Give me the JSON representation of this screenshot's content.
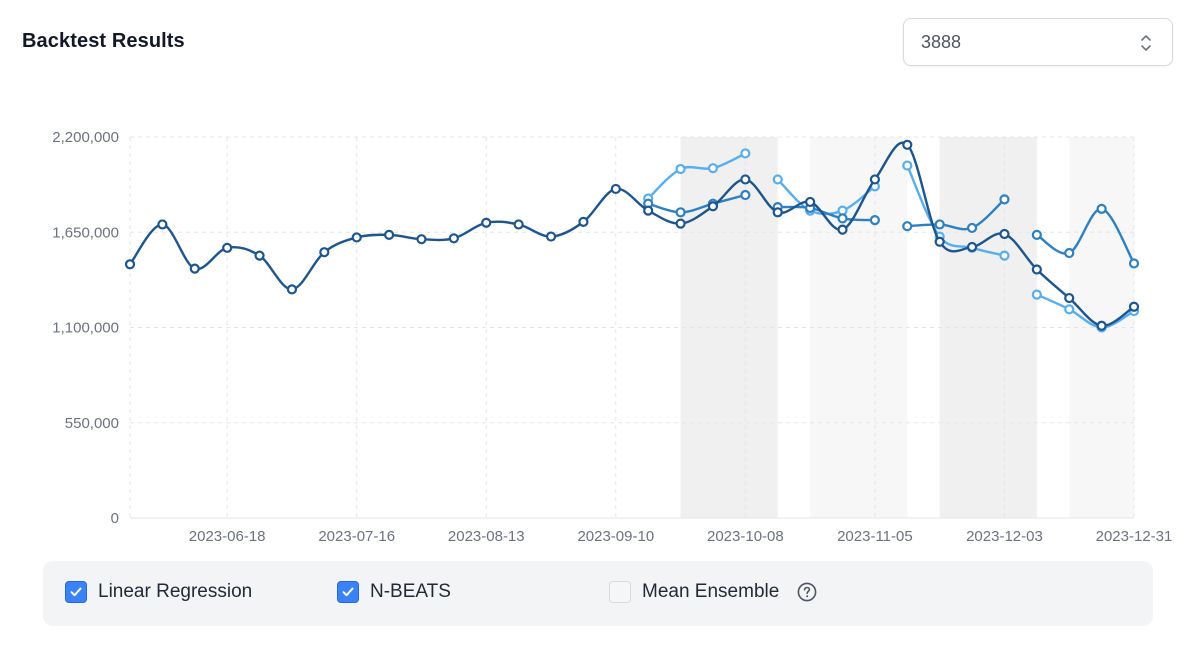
{
  "header": {
    "title": "Backtest Results"
  },
  "selector": {
    "value": "3888",
    "icon": "chevron-up-down-icon"
  },
  "legend": {
    "items": [
      {
        "label": "Linear Regression",
        "checked": true
      },
      {
        "label": "N-BEATS",
        "checked": true
      },
      {
        "label": "Mean Ensemble",
        "checked": false
      }
    ],
    "help_icon": "question-circle-icon"
  },
  "colors": {
    "actual": "#1c5590",
    "linear_regression": "#2d80c4",
    "nbeats": "#56aef0",
    "checkbox": "#3b82f6"
  },
  "chart_data": {
    "type": "line",
    "title": "",
    "xlabel": "",
    "ylabel": "",
    "ylim": [
      0,
      2200000
    ],
    "xlim": [
      "2023-05-28",
      "2023-12-31"
    ],
    "y_ticks": [
      0,
      550000,
      1100000,
      1650000,
      2200000
    ],
    "y_tick_labels": [
      "0",
      "550,000",
      "1,100,000",
      "1,650,000",
      "2,200,000"
    ],
    "x_ticks": [
      "2023-06-18",
      "2023-07-16",
      "2023-08-13",
      "2023-09-10",
      "2023-10-08",
      "2023-11-05",
      "2023-12-03",
      "2023-12-31"
    ],
    "grid": true,
    "shaded_periods": [
      {
        "start": "2023-09-24",
        "end": "2023-10-15"
      },
      {
        "start": "2023-10-22",
        "end": "2023-11-12"
      },
      {
        "start": "2023-11-19",
        "end": "2023-12-10"
      },
      {
        "start": "2023-12-17",
        "end": "2024-01-07"
      }
    ],
    "series": [
      {
        "name": "",
        "role": "actual",
        "points": [
          [
            "2023-05-28",
            1465000
          ],
          [
            "2023-06-04",
            1695000
          ],
          [
            "2023-06-11",
            1440000
          ],
          [
            "2023-06-18",
            1560000
          ],
          [
            "2023-06-25",
            1515000
          ],
          [
            "2023-07-02",
            1320000
          ],
          [
            "2023-07-09",
            1535000
          ],
          [
            "2023-07-16",
            1620000
          ],
          [
            "2023-07-23",
            1635000
          ],
          [
            "2023-07-30",
            1610000
          ],
          [
            "2023-08-06",
            1615000
          ],
          [
            "2023-08-13",
            1705000
          ],
          [
            "2023-08-20",
            1695000
          ],
          [
            "2023-08-27",
            1625000
          ],
          [
            "2023-09-03",
            1710000
          ],
          [
            "2023-09-10",
            1900000
          ],
          [
            "2023-09-17",
            1775000
          ],
          [
            "2023-09-24",
            1700000
          ],
          [
            "2023-10-01",
            1800000
          ],
          [
            "2023-10-08",
            1955000
          ],
          [
            "2023-10-15",
            1765000
          ],
          [
            "2023-10-22",
            1825000
          ],
          [
            "2023-10-29",
            1665000
          ],
          [
            "2023-11-05",
            1955000
          ],
          [
            "2023-11-12",
            2155000
          ],
          [
            "2023-11-19",
            1595000
          ],
          [
            "2023-11-26",
            1565000
          ],
          [
            "2023-12-03",
            1640000
          ],
          [
            "2023-12-10",
            1435000
          ],
          [
            "2023-12-17",
            1270000
          ],
          [
            "2023-12-24",
            1110000
          ],
          [
            "2023-12-31",
            1220000
          ]
        ]
      },
      {
        "name": "Linear Regression",
        "role": "linear_regression",
        "segments": [
          [
            [
              "2023-09-17",
              1815000
            ],
            [
              "2023-09-24",
              1765000
            ],
            [
              "2023-10-01",
              1815000
            ],
            [
              "2023-10-08",
              1865000
            ]
          ],
          [
            [
              "2023-10-15",
              1795000
            ],
            [
              "2023-10-22",
              1790000
            ],
            [
              "2023-10-29",
              1730000
            ],
            [
              "2023-11-05",
              1720000
            ]
          ],
          [
            [
              "2023-11-12",
              1685000
            ],
            [
              "2023-11-19",
              1695000
            ],
            [
              "2023-11-26",
              1675000
            ],
            [
              "2023-12-03",
              1840000
            ]
          ],
          [
            [
              "2023-12-10",
              1635000
            ],
            [
              "2023-12-17",
              1530000
            ],
            [
              "2023-12-24",
              1785000
            ],
            [
              "2023-12-31",
              1470000
            ]
          ]
        ]
      },
      {
        "name": "N-BEATS",
        "role": "nbeats",
        "segments": [
          [
            [
              "2023-09-17",
              1845000
            ],
            [
              "2023-09-24",
              2015000
            ],
            [
              "2023-10-01",
              2020000
            ],
            [
              "2023-10-08",
              2105000
            ]
          ],
          [
            [
              "2023-10-15",
              1955000
            ],
            [
              "2023-10-22",
              1775000
            ],
            [
              "2023-10-29",
              1775000
            ],
            [
              "2023-11-05",
              1915000
            ]
          ],
          [
            [
              "2023-11-12",
              2035000
            ],
            [
              "2023-11-19",
              1625000
            ],
            [
              "2023-11-26",
              1560000
            ],
            [
              "2023-12-03",
              1515000
            ]
          ],
          [
            [
              "2023-12-10",
              1290000
            ],
            [
              "2023-12-17",
              1205000
            ],
            [
              "2023-12-24",
              1100000
            ],
            [
              "2023-12-31",
              1195000
            ]
          ]
        ]
      }
    ]
  }
}
